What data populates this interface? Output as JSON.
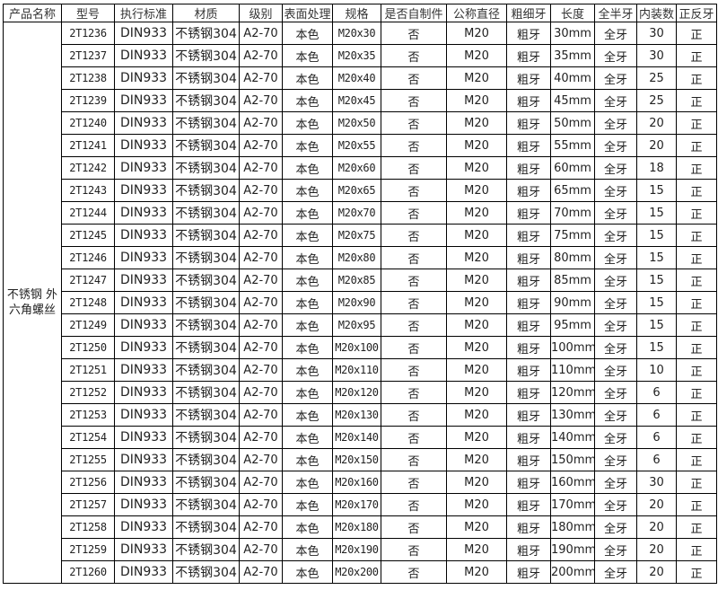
{
  "headers": [
    "产品名称",
    "型号",
    "执行标准",
    "材质",
    "级别",
    "表面处理",
    "规格",
    "是否自制件",
    "公称直径",
    "粗细牙",
    "长度",
    "全半牙",
    "内装数",
    "正反牙"
  ],
  "product_name": "不锈钢 外六角螺丝",
  "rows": [
    [
      "2T1236",
      "DIN933",
      "不锈钢304",
      "A2-70",
      "本色",
      "M20x30",
      "否",
      "M20",
      "粗牙",
      "30mm",
      "全牙",
      "30",
      "正"
    ],
    [
      "2T1237",
      "DIN933",
      "不锈钢304",
      "A2-70",
      "本色",
      "M20x35",
      "否",
      "M20",
      "粗牙",
      "35mm",
      "全牙",
      "30",
      "正"
    ],
    [
      "2T1238",
      "DIN933",
      "不锈钢304",
      "A2-70",
      "本色",
      "M20x40",
      "否",
      "M20",
      "粗牙",
      "40mm",
      "全牙",
      "25",
      "正"
    ],
    [
      "2T1239",
      "DIN933",
      "不锈钢304",
      "A2-70",
      "本色",
      "M20x45",
      "否",
      "M20",
      "粗牙",
      "45mm",
      "全牙",
      "25",
      "正"
    ],
    [
      "2T1240",
      "DIN933",
      "不锈钢304",
      "A2-70",
      "本色",
      "M20x50",
      "否",
      "M20",
      "粗牙",
      "50mm",
      "全牙",
      "20",
      "正"
    ],
    [
      "2T1241",
      "DIN933",
      "不锈钢304",
      "A2-70",
      "本色",
      "M20x55",
      "否",
      "M20",
      "粗牙",
      "55mm",
      "全牙",
      "20",
      "正"
    ],
    [
      "2T1242",
      "DIN933",
      "不锈钢304",
      "A2-70",
      "本色",
      "M20x60",
      "否",
      "M20",
      "粗牙",
      "60mm",
      "全牙",
      "18",
      "正"
    ],
    [
      "2T1243",
      "DIN933",
      "不锈钢304",
      "A2-70",
      "本色",
      "M20x65",
      "否",
      "M20",
      "粗牙",
      "65mm",
      "全牙",
      "15",
      "正"
    ],
    [
      "2T1244",
      "DIN933",
      "不锈钢304",
      "A2-70",
      "本色",
      "M20x70",
      "否",
      "M20",
      "粗牙",
      "70mm",
      "全牙",
      "15",
      "正"
    ],
    [
      "2T1245",
      "DIN933",
      "不锈钢304",
      "A2-70",
      "本色",
      "M20x75",
      "否",
      "M20",
      "粗牙",
      "75mm",
      "全牙",
      "15",
      "正"
    ],
    [
      "2T1246",
      "DIN933",
      "不锈钢304",
      "A2-70",
      "本色",
      "M20x80",
      "否",
      "M20",
      "粗牙",
      "80mm",
      "全牙",
      "15",
      "正"
    ],
    [
      "2T1247",
      "DIN933",
      "不锈钢304",
      "A2-70",
      "本色",
      "M20x85",
      "否",
      "M20",
      "粗牙",
      "85mm",
      "全牙",
      "15",
      "正"
    ],
    [
      "2T1248",
      "DIN933",
      "不锈钢304",
      "A2-70",
      "本色",
      "M20x90",
      "否",
      "M20",
      "粗牙",
      "90mm",
      "全牙",
      "15",
      "正"
    ],
    [
      "2T1249",
      "DIN933",
      "不锈钢304",
      "A2-70",
      "本色",
      "M20x95",
      "否",
      "M20",
      "粗牙",
      "95mm",
      "全牙",
      "15",
      "正"
    ],
    [
      "2T1250",
      "DIN933",
      "不锈钢304",
      "A2-70",
      "本色",
      "M20x100",
      "否",
      "M20",
      "粗牙",
      "100mm",
      "全牙",
      "15",
      "正"
    ],
    [
      "2T1251",
      "DIN933",
      "不锈钢304",
      "A2-70",
      "本色",
      "M20x110",
      "否",
      "M20",
      "粗牙",
      "110mm",
      "全牙",
      "10",
      "正"
    ],
    [
      "2T1252",
      "DIN933",
      "不锈钢304",
      "A2-70",
      "本色",
      "M20x120",
      "否",
      "M20",
      "粗牙",
      "120mm",
      "全牙",
      "6",
      "正"
    ],
    [
      "2T1253",
      "DIN933",
      "不锈钢304",
      "A2-70",
      "本色",
      "M20x130",
      "否",
      "M20",
      "粗牙",
      "130mm",
      "全牙",
      "6",
      "正"
    ],
    [
      "2T1254",
      "DIN933",
      "不锈钢304",
      "A2-70",
      "本色",
      "M20x140",
      "否",
      "M20",
      "粗牙",
      "140mm",
      "全牙",
      "6",
      "正"
    ],
    [
      "2T1255",
      "DIN933",
      "不锈钢304",
      "A2-70",
      "本色",
      "M20x150",
      "否",
      "M20",
      "粗牙",
      "150mm",
      "全牙",
      "6",
      "正"
    ],
    [
      "2T1256",
      "DIN933",
      "不锈钢304",
      "A2-70",
      "本色",
      "M20x160",
      "否",
      "M20",
      "粗牙",
      "160mm",
      "全牙",
      "30",
      "正"
    ],
    [
      "2T1257",
      "DIN933",
      "不锈钢304",
      "A2-70",
      "本色",
      "M20x170",
      "否",
      "M20",
      "粗牙",
      "170mm",
      "全牙",
      "20",
      "正"
    ],
    [
      "2T1258",
      "DIN933",
      "不锈钢304",
      "A2-70",
      "本色",
      "M20x180",
      "否",
      "M20",
      "粗牙",
      "180mm",
      "全牙",
      "20",
      "正"
    ],
    [
      "2T1259",
      "DIN933",
      "不锈钢304",
      "A2-70",
      "本色",
      "M20x190",
      "否",
      "M20",
      "粗牙",
      "190mm",
      "全牙",
      "20",
      "正"
    ],
    [
      "2T1260",
      "DIN933",
      "不锈钢304",
      "A2-70",
      "本色",
      "M20x200",
      "否",
      "M20",
      "粗牙",
      "200mm",
      "全牙",
      "20",
      "正"
    ]
  ]
}
